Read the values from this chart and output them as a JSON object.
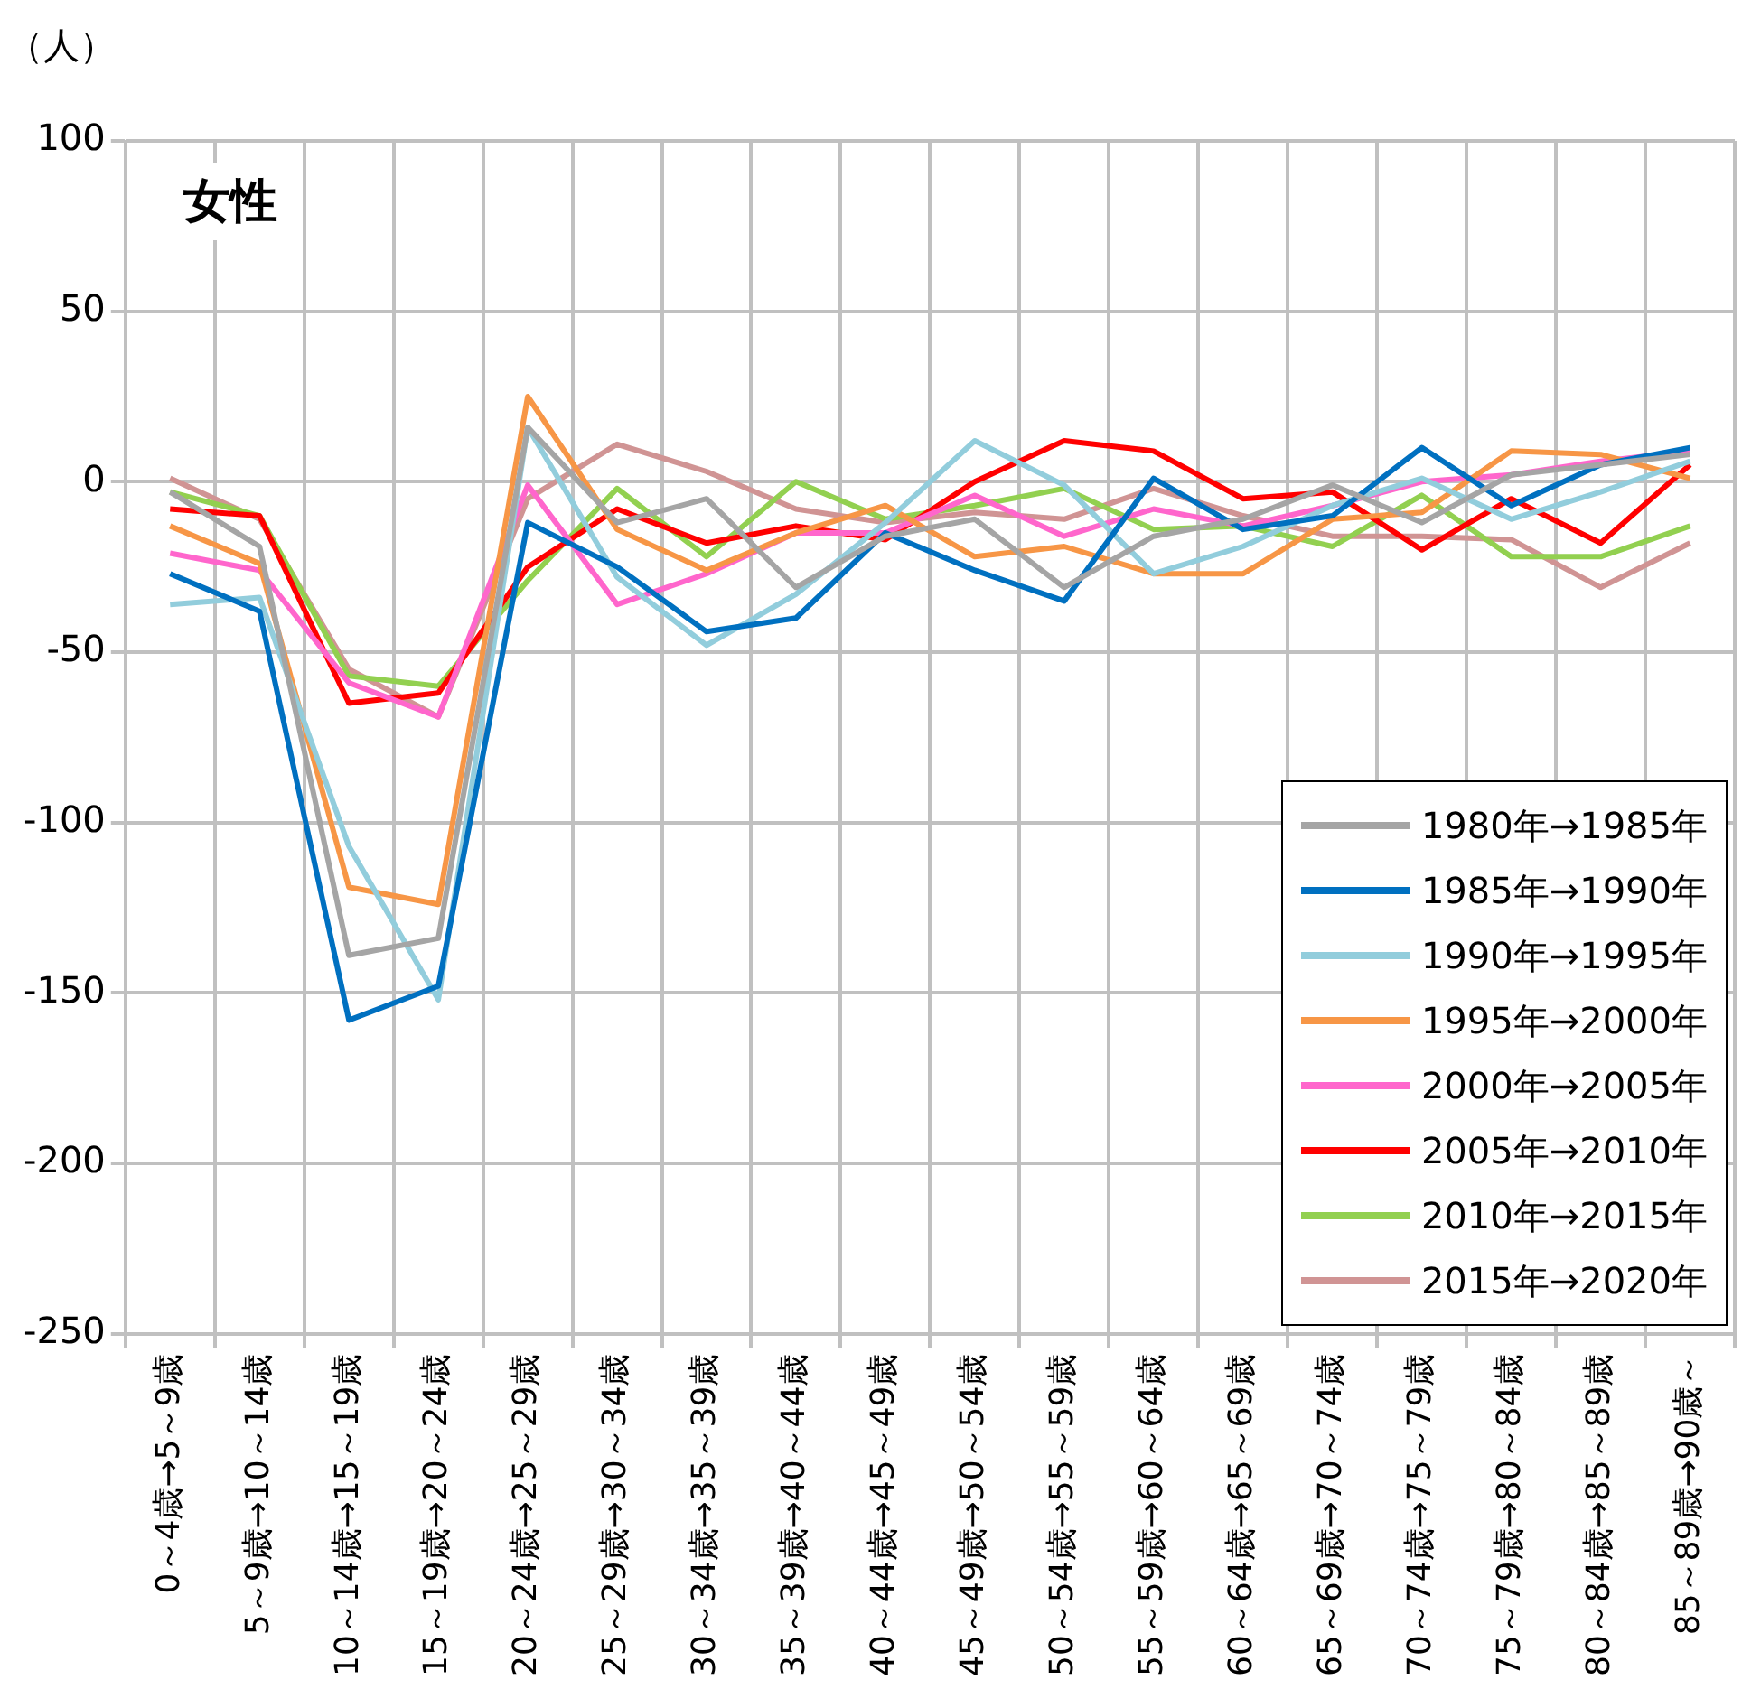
{
  "chart_data": {
    "type": "line",
    "title": "女性",
    "ylabel": "（人）",
    "categories": [
      "0～4歳→5～9歳",
      "5～9歳→10～14歳",
      "10～14歳→15～19歳",
      "15～19歳→20～24歳",
      "20～24歳→25～29歳",
      "25～29歳→30～34歳",
      "30～34歳→35～39歳",
      "35～39歳→40～44歳",
      "40～44歳→45～49歳",
      "45～49歳→50～54歳",
      "50～54歳→55～59歳",
      "55～59歳→60～64歳",
      "60～64歳→65～69歳",
      "65～69歳→70～74歳",
      "70～74歳→75～79歳",
      "75～79歳→80～84歳",
      "80～84歳→85～89歳",
      "85～89歳→90歳～"
    ],
    "series": [
      {
        "name": "1980年→1985年",
        "color": "#a5a5a5",
        "values": [
          -3,
          -19,
          -139,
          -134,
          16,
          -12,
          -5,
          -31,
          -16,
          -11,
          -31,
          -16,
          -11,
          -1,
          -12,
          2,
          5,
          8
        ]
      },
      {
        "name": "1985年→1990年",
        "color": "#0070c0",
        "values": [
          -27,
          -38,
          -158,
          -148,
          -12,
          -25,
          -44,
          -40,
          -15,
          -26,
          -35,
          1,
          -14,
          -10,
          10,
          -7,
          5,
          10
        ]
      },
      {
        "name": "1990年→1995年",
        "color": "#92cddc",
        "values": [
          -36,
          -34,
          -107,
          -152,
          16,
          -28,
          -48,
          -33,
          -12,
          12,
          -1,
          -27,
          -19,
          -7,
          1,
          -11,
          -3,
          6
        ]
      },
      {
        "name": "1995年→2000年",
        "color": "#f79646",
        "values": [
          -13,
          -24,
          -119,
          -124,
          25,
          -14,
          -26,
          -15,
          -7,
          -22,
          -19,
          -27,
          -27,
          -11,
          -9,
          9,
          8,
          1
        ]
      },
      {
        "name": "2000年→2005年",
        "color": "#ff66cc",
        "values": [
          -21,
          -26,
          -59,
          -69,
          -1,
          -36,
          -27,
          -15,
          -15,
          -4,
          -16,
          -8,
          -13,
          -7,
          0,
          2,
          6,
          9
        ]
      },
      {
        "name": "2005年→2010年",
        "color": "#ff0000",
        "values": [
          -8,
          -10,
          -65,
          -62,
          -25,
          -8,
          -18,
          -13,
          -17,
          0,
          12,
          9,
          -5,
          -3,
          -20,
          -5,
          -18,
          5
        ]
      },
      {
        "name": "2010年→2015年",
        "color": "#92d050",
        "values": [
          -3,
          -10,
          -57,
          -60,
          -29,
          -2,
          -22,
          0,
          -11,
          -7,
          -2,
          -14,
          -13,
          -19,
          -4,
          -22,
          -22,
          -13
        ]
      },
      {
        "name": "2015年→2020年",
        "color": "#d09494",
        "values": [
          1,
          -11,
          -55,
          -69,
          -5,
          11,
          3,
          -8,
          -12,
          -9,
          -11,
          -2,
          -10,
          -16,
          -16,
          -17,
          -31,
          -18
        ]
      }
    ],
    "ylim": [
      -250,
      100
    ],
    "yticks": [
      100,
      50,
      0,
      -50,
      -100,
      -150,
      -200,
      -250
    ],
    "grid": true,
    "legend": "bottom right"
  }
}
